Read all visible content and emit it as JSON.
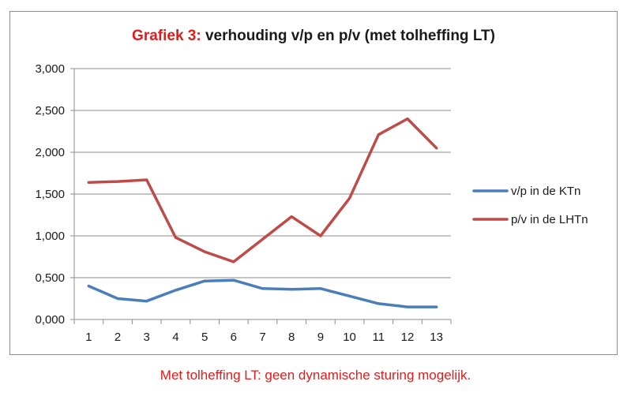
{
  "chart_data": {
    "type": "line",
    "title_prefix": "Grafiek 3:",
    "title_main": "verhouding v/p en p/v (met tolheffing LT)",
    "categories": [
      "1",
      "2",
      "3",
      "4",
      "5",
      "6",
      "7",
      "8",
      "9",
      "10",
      "11",
      "12",
      "13"
    ],
    "ylim": [
      0,
      3
    ],
    "yticks": [
      "0,000",
      "0,500",
      "1,000",
      "1,500",
      "2,000",
      "2,500",
      "3,000"
    ],
    "grid": true,
    "legend_position": "right",
    "series": [
      {
        "name": "v/p in de KTn",
        "color": "#4a7ebb",
        "values": [
          0.4,
          0.25,
          0.22,
          0.35,
          0.46,
          0.47,
          0.37,
          0.36,
          0.37,
          0.28,
          0.19,
          0.15,
          0.15
        ]
      },
      {
        "name": "p/v in de LHTn",
        "color": "#be4b48",
        "values": [
          1.64,
          1.65,
          1.67,
          0.98,
          0.81,
          0.69,
          0.96,
          1.23,
          1.0,
          1.45,
          2.21,
          2.4,
          2.05
        ]
      }
    ]
  },
  "caption": "Met tolheffing LT: geen dynamische sturing mogelijk."
}
